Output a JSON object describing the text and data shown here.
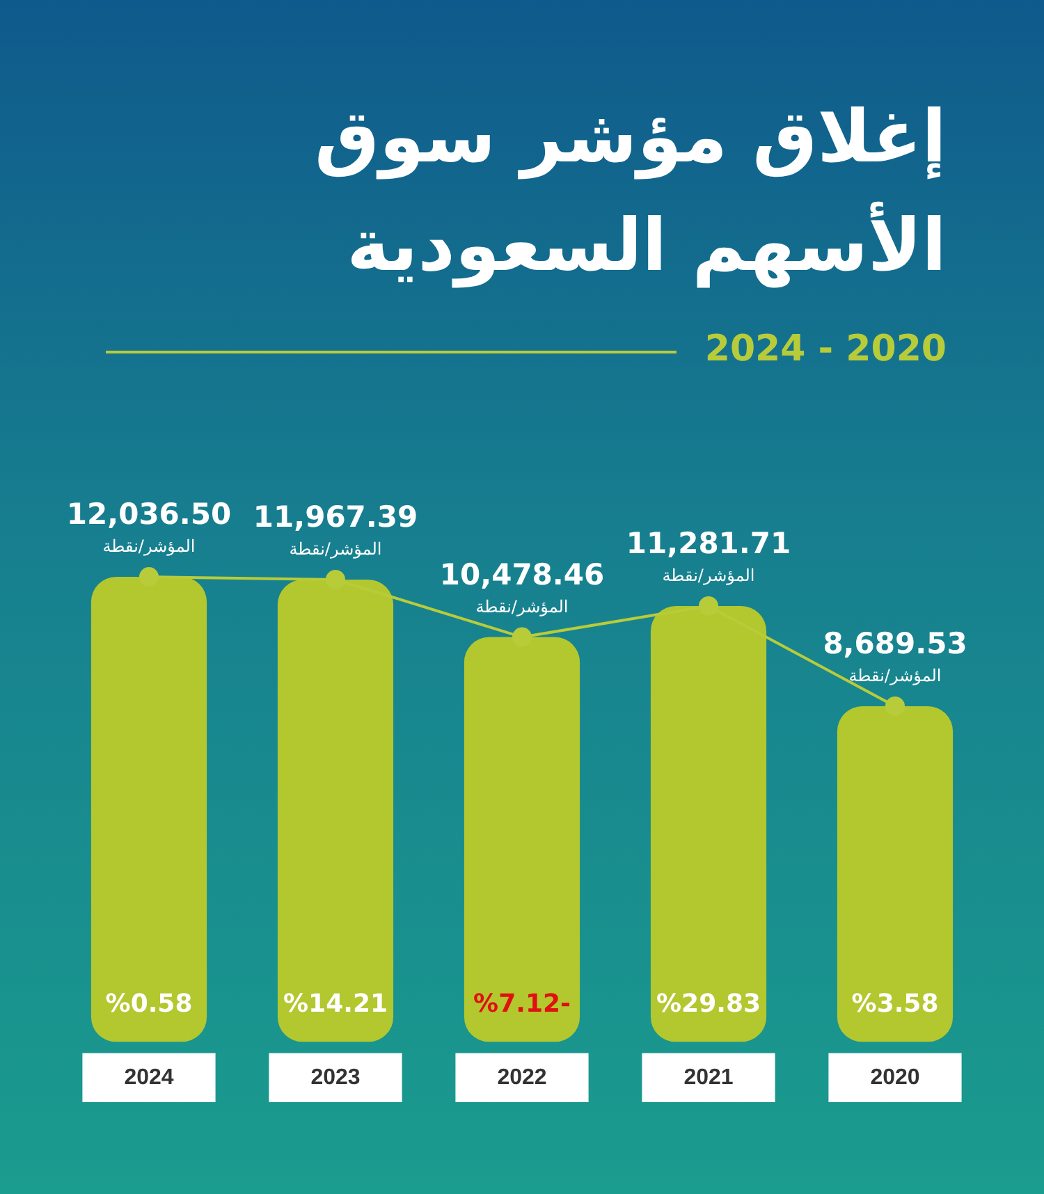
{
  "chart_data": {
    "type": "bar",
    "title": "إغلاق مؤشر سوق الأسهم السعودية",
    "subtitle": "2024 - 2020",
    "ylabel": "المؤشر/نقطة",
    "categories": [
      "2024",
      "2023",
      "2022",
      "2021",
      "2020"
    ],
    "series": [
      {
        "color": "#b3c72f",
        "values": [
          12036.5,
          11967.39,
          10478.46,
          11281.71,
          8689.53
        ],
        "value_labels": [
          "12,036.50",
          "11,967.39",
          "10,478.46",
          "11,281.71",
          "8,689.53"
        ]
      },
      {
        "type": "line",
        "color": "#b8cc3a",
        "values": [
          12036.5,
          11967.39,
          10478.46,
          11281.71,
          8689.53
        ]
      }
    ],
    "marker": "circle",
    "annotations": [
      "%0.58",
      "%14.21",
      "%7.12-",
      "%29.83",
      "%3.58"
    ],
    "grid": false,
    "legend": false
  }
}
